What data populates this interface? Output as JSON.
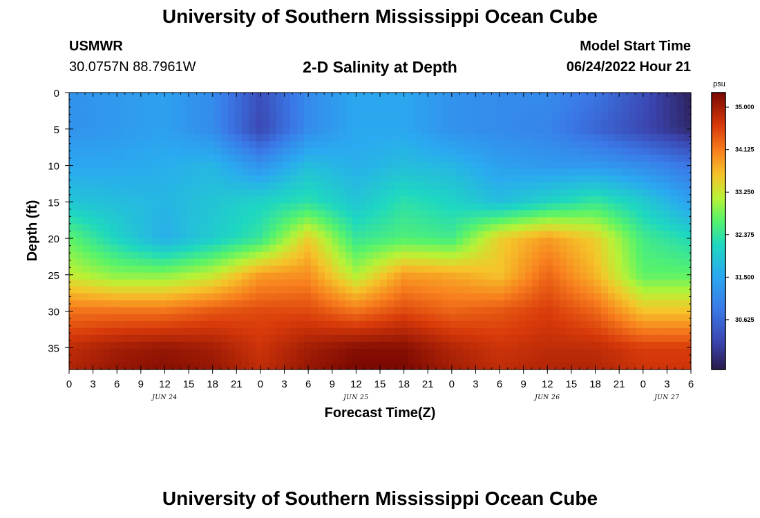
{
  "page": {
    "title_top": "University of Southern Mississippi Ocean Cube",
    "title_bottom": "University of Southern Mississippi Ocean Cube",
    "station_id": "USMWR",
    "station_coords": "30.0757N  88.7961W",
    "chart_title": "2-D Salinity at Depth",
    "model_start_label": "Model Start Time",
    "model_start_value": "06/24/2022 Hour 21"
  },
  "chart_data": {
    "type": "heatmap",
    "title": "2-D Salinity at Depth",
    "xlabel": "Forecast Time(Z)",
    "ylabel": "Depth (ft)",
    "x_unit": "hours from 06/24/2022 00Z",
    "xlim": [
      0,
      78
    ],
    "ylim": [
      0,
      38
    ],
    "y_reversed": true,
    "x_tick_labels": [
      "0",
      "3",
      "6",
      "9",
      "12",
      "15",
      "18",
      "21",
      "0",
      "3",
      "6",
      "9",
      "12",
      "15",
      "18",
      "21",
      "0",
      "3",
      "6",
      "9",
      "12",
      "15",
      "18",
      "21",
      "0",
      "3",
      "6"
    ],
    "y_ticks": [
      0,
      5,
      10,
      15,
      20,
      25,
      30,
      35
    ],
    "day_labels": [
      {
        "label": "JUN 24",
        "hour": 12
      },
      {
        "label": "JUN 25",
        "hour": 36
      },
      {
        "label": "JUN 26",
        "hour": 60
      },
      {
        "label": "JUN 27",
        "hour": 75
      }
    ],
    "colorbar": {
      "unit": "psu",
      "min": 29.6,
      "max": 35.3,
      "tick_values": [
        35.0,
        34.125,
        33.25,
        32.375,
        31.5,
        30.625
      ],
      "tick_labels": [
        "35.000",
        "34.125",
        "33.250",
        "32.375",
        "31.500",
        "30.625"
      ]
    },
    "grid": false,
    "legend": "colorbar-right",
    "times_h": [
      0,
      6,
      12,
      18,
      24,
      30,
      36,
      42,
      48,
      54,
      60,
      66,
      72,
      78
    ],
    "depths_ft": [
      0,
      5,
      10,
      15,
      20,
      25,
      30,
      35,
      38
    ],
    "salinity_psu": [
      [
        31.2,
        31.3,
        31.4,
        31.1,
        30.3,
        31.1,
        31.5,
        31.5,
        31.2,
        31.1,
        31.1,
        30.8,
        30.3,
        29.7
      ],
      [
        31.2,
        31.3,
        31.4,
        31.1,
        30.2,
        31.1,
        31.5,
        31.5,
        31.2,
        31.1,
        31.0,
        30.6,
        30.2,
        29.8
      ],
      [
        31.5,
        31.5,
        31.6,
        31.7,
        31.2,
        31.8,
        31.6,
        31.8,
        31.7,
        31.4,
        31.3,
        31.3,
        31.1,
        30.8
      ],
      [
        31.9,
        31.8,
        31.7,
        31.9,
        32.1,
        32.3,
        31.9,
        32.3,
        32.1,
        31.8,
        32.1,
        32.4,
        32.0,
        31.4
      ],
      [
        32.7,
        32.1,
        31.6,
        32.0,
        32.4,
        33.5,
        32.4,
        32.6,
        32.5,
        33.5,
        33.9,
        33.5,
        32.5,
        32.2
      ],
      [
        33.2,
        32.9,
        32.9,
        33.2,
        33.9,
        34.0,
        33.1,
        33.9,
        33.8,
        33.6,
        34.3,
        33.7,
        32.7,
        32.7
      ],
      [
        34.2,
        34.2,
        34.2,
        34.4,
        34.5,
        34.5,
        34.2,
        34.5,
        34.3,
        34.4,
        34.6,
        34.3,
        33.6,
        33.6
      ],
      [
        34.8,
        35.0,
        35.1,
        35.0,
        34.7,
        35.0,
        35.2,
        35.2,
        34.9,
        34.7,
        34.8,
        34.8,
        34.6,
        34.6
      ],
      [
        34.9,
        35.1,
        35.2,
        35.1,
        34.8,
        35.1,
        35.3,
        35.3,
        35.0,
        34.8,
        34.9,
        34.9,
        34.7,
        34.7
      ]
    ]
  }
}
